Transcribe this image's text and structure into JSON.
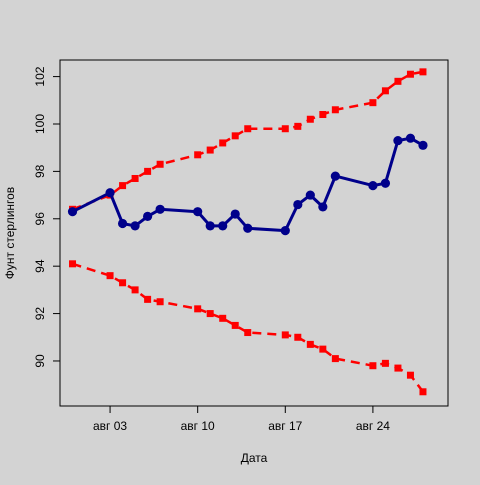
{
  "chart_data": {
    "type": "line",
    "title": "",
    "xlabel": "Дата",
    "ylabel": "Фунт стерлингов",
    "x_ticks": [
      "авг 03",
      "авг 10",
      "авг 17",
      "авг 24"
    ],
    "y_ticks": [
      "90",
      "92",
      "94",
      "96",
      "98",
      "100",
      "102"
    ],
    "xlim": [
      "2020-07-30",
      "2020-08-30"
    ],
    "ylim": [
      88.1,
      102.7
    ],
    "grid": false,
    "legend": "none",
    "series": [
      {
        "style": "upper-band",
        "color": "#ff0000",
        "dashed": true,
        "points": [
          [
            "2020-07-31",
            96.4
          ],
          [
            "2020-08-03",
            97.0
          ],
          [
            "2020-08-04",
            97.4
          ],
          [
            "2020-08-05",
            97.7
          ],
          [
            "2020-08-06",
            98.0
          ],
          [
            "2020-08-07",
            98.3
          ],
          [
            "2020-08-10",
            98.7
          ],
          [
            "2020-08-11",
            98.9
          ],
          [
            "2020-08-12",
            99.2
          ],
          [
            "2020-08-13",
            99.5
          ],
          [
            "2020-08-14",
            99.8
          ],
          [
            "2020-08-17",
            99.8
          ],
          [
            "2020-08-18",
            99.9
          ],
          [
            "2020-08-19",
            100.2
          ],
          [
            "2020-08-20",
            100.4
          ],
          [
            "2020-08-21",
            100.6
          ],
          [
            "2020-08-24",
            100.9
          ],
          [
            "2020-08-25",
            101.4
          ],
          [
            "2020-08-26",
            101.8
          ],
          [
            "2020-08-27",
            102.1
          ],
          [
            "2020-08-28",
            102.2
          ]
        ]
      },
      {
        "style": "main",
        "color": "#00008b",
        "dashed": false,
        "points": [
          [
            "2020-07-31",
            96.3
          ],
          [
            "2020-08-03",
            97.1
          ],
          [
            "2020-08-04",
            95.8
          ],
          [
            "2020-08-05",
            95.7
          ],
          [
            "2020-08-06",
            96.1
          ],
          [
            "2020-08-07",
            96.4
          ],
          [
            "2020-08-10",
            96.3
          ],
          [
            "2020-08-11",
            95.7
          ],
          [
            "2020-08-12",
            95.7
          ],
          [
            "2020-08-13",
            96.2
          ],
          [
            "2020-08-14",
            95.6
          ],
          [
            "2020-08-17",
            95.5
          ],
          [
            "2020-08-18",
            96.6
          ],
          [
            "2020-08-19",
            97.0
          ],
          [
            "2020-08-20",
            96.5
          ],
          [
            "2020-08-21",
            97.8
          ],
          [
            "2020-08-24",
            97.4
          ],
          [
            "2020-08-25",
            97.5
          ],
          [
            "2020-08-26",
            99.3
          ],
          [
            "2020-08-27",
            99.4
          ],
          [
            "2020-08-28",
            99.1
          ]
        ]
      },
      {
        "style": "lower-band",
        "color": "#ff0000",
        "dashed": true,
        "points": [
          [
            "2020-07-31",
            94.1
          ],
          [
            "2020-08-03",
            93.6
          ],
          [
            "2020-08-04",
            93.3
          ],
          [
            "2020-08-05",
            93.0
          ],
          [
            "2020-08-06",
            92.6
          ],
          [
            "2020-08-07",
            92.5
          ],
          [
            "2020-08-10",
            92.2
          ],
          [
            "2020-08-11",
            92.0
          ],
          [
            "2020-08-12",
            91.8
          ],
          [
            "2020-08-13",
            91.5
          ],
          [
            "2020-08-14",
            91.2
          ],
          [
            "2020-08-17",
            91.1
          ],
          [
            "2020-08-18",
            91.0
          ],
          [
            "2020-08-19",
            90.7
          ],
          [
            "2020-08-20",
            90.5
          ],
          [
            "2020-08-21",
            90.1
          ],
          [
            "2020-08-24",
            89.8
          ],
          [
            "2020-08-25",
            89.9
          ],
          [
            "2020-08-26",
            89.7
          ],
          [
            "2020-08-27",
            89.4
          ],
          [
            "2020-08-28",
            88.7
          ]
        ]
      }
    ]
  }
}
